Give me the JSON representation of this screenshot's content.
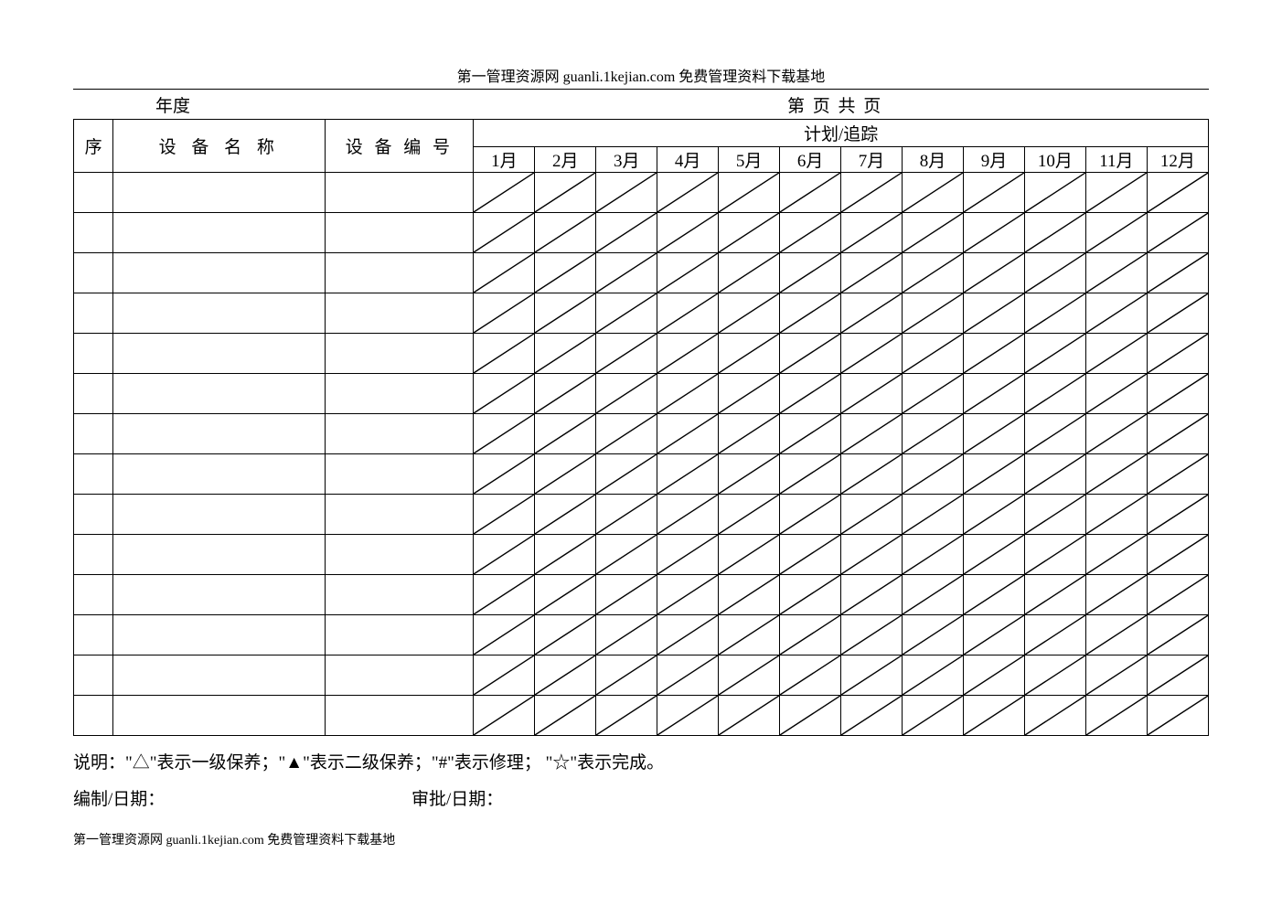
{
  "header": "第一管理资源网 guanli.1kejian.com 免费管理资料下载基地",
  "top": {
    "year_label": "年度",
    "page_label": "第  页 共  页"
  },
  "table": {
    "columns": {
      "seq": "序",
      "name": "设 备 名 称",
      "code": "设 备 编 号",
      "plan_track": "计划/追踪",
      "months": [
        "1月",
        "2月",
        "3月",
        "4月",
        "5月",
        "6月",
        "7月",
        "8月",
        "9月",
        "10月",
        "11月",
        "12月"
      ]
    },
    "row_count": 14,
    "border_color": "#000000",
    "diagonal_color": "#000000",
    "diagonal_width": 1.4
  },
  "notes": "说明：\"△\"表示一级保养；\"▲\"表示二级保养；\"#\"表示修理； \"☆\"表示完成。",
  "signatures": {
    "prepared": "编制/日期：",
    "approved": "审批/日期："
  },
  "footer": "第一管理资源网 guanli.1kejian.com 免费管理资料下载基地"
}
